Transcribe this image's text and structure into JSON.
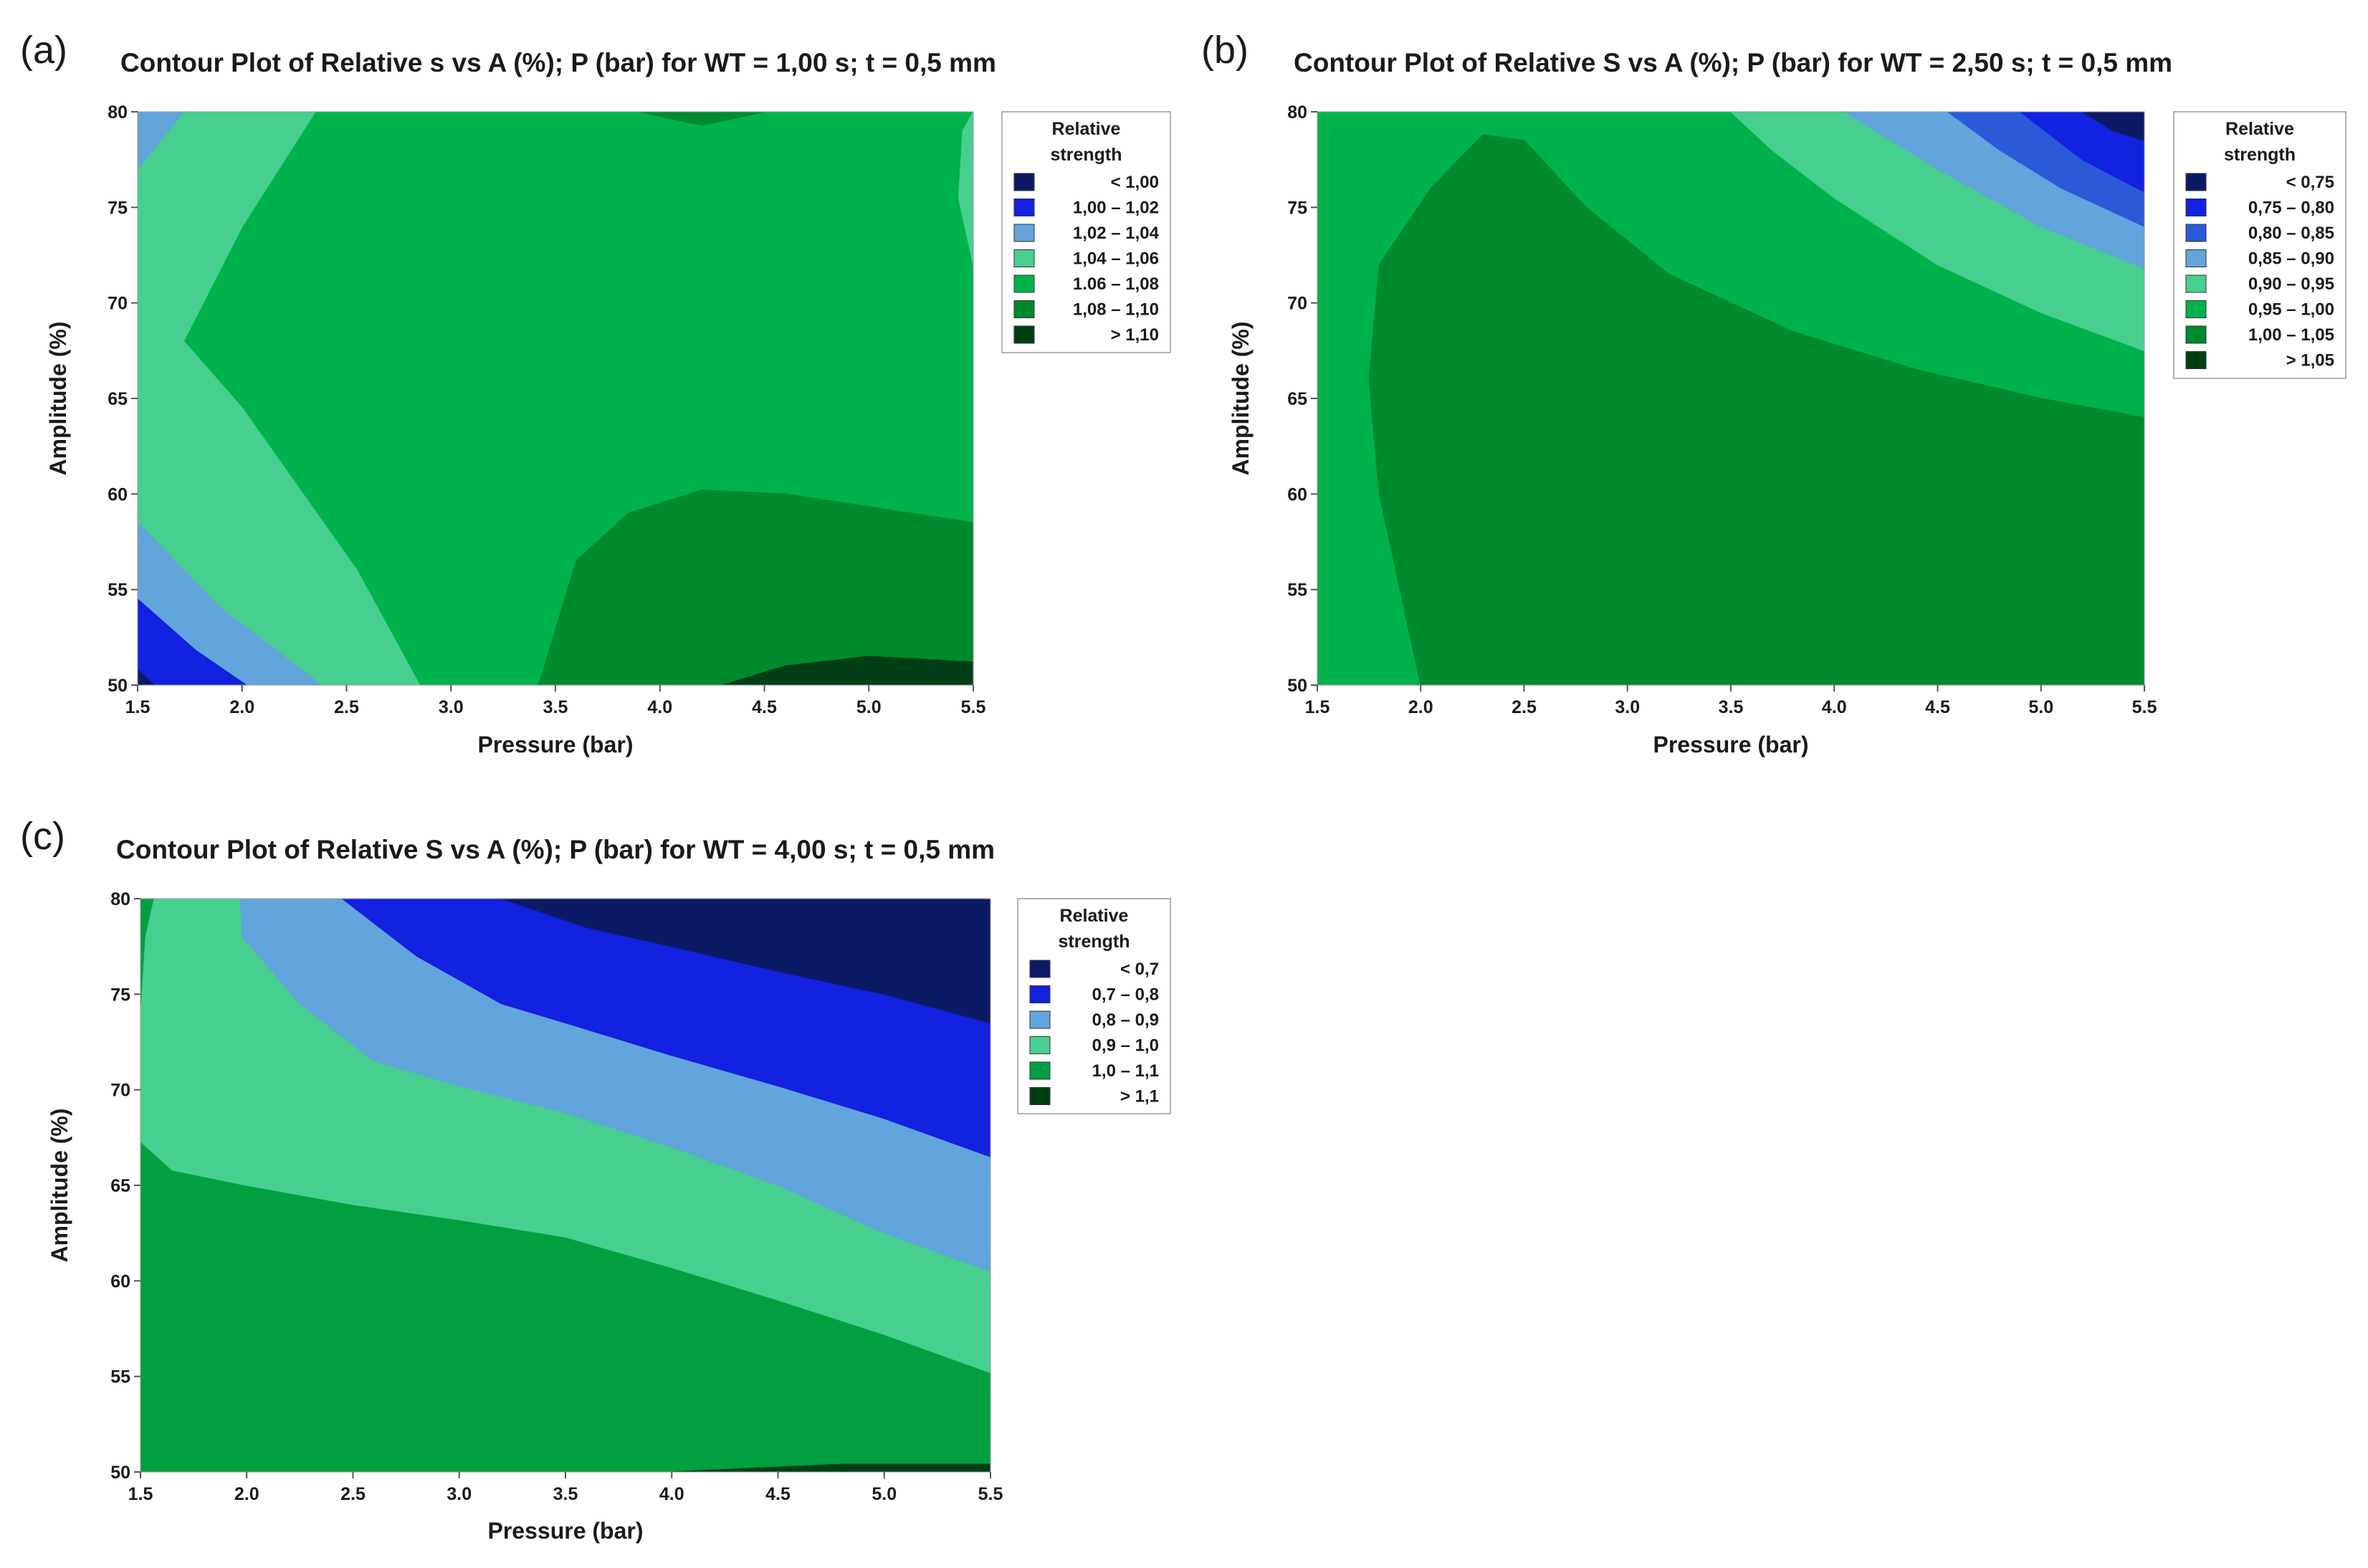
{
  "chart_data": [
    {
      "type": "contour",
      "panel_label": "(a)",
      "title": "Contour Plot of Relative s vs A (%); P (bar) for WT = 1,00 s; t = 0,5 mm",
      "xlabel": "Pressure (bar)",
      "ylabel": "Amplitude (%)",
      "xlim": [
        1.5,
        5.5
      ],
      "ylim": [
        50,
        80
      ],
      "x_ticks": [
        "1.5",
        "2.0",
        "2.5",
        "3.0",
        "3.5",
        "4.0",
        "4.5",
        "5.0",
        "5.5"
      ],
      "y_ticks": [
        "50",
        "55",
        "60",
        "65",
        "70",
        "75",
        "80"
      ],
      "legend_title": "Relative strength",
      "levels": [
        {
          "label": "< 1,00",
          "color": "#0c1a66"
        },
        {
          "label": "1,00 – 1,02",
          "color": "#1321e0"
        },
        {
          "label": "1,02 – 1,04",
          "color": "#62a4dc"
        },
        {
          "label": "1,04 – 1,06",
          "color": "#47cf8f"
        },
        {
          "label": "1.06 – 1,08",
          "color": "#00b24b"
        },
        {
          "label": "1,08 – 1,10",
          "color": "#008a2e"
        },
        {
          "label": "> 1,10",
          "color": "#003f15"
        }
      ],
      "regions": [
        {
          "level": 3,
          "points": [
            [
              1.5,
              50
            ],
            [
              2.85,
              50
            ],
            [
              2.55,
              56
            ],
            [
              2.0,
              64.5
            ],
            [
              1.72,
              68
            ],
            [
              2.0,
              74
            ],
            [
              2.35,
              80
            ],
            [
              1.5,
              80
            ]
          ]
        },
        {
          "level": 2,
          "points": [
            [
              1.5,
              50
            ],
            [
              2.38,
              50
            ],
            [
              1.9,
              54
            ],
            [
              1.5,
              58.5
            ]
          ]
        },
        {
          "level": 1,
          "points": [
            [
              1.5,
              50
            ],
            [
              2.02,
              50
            ],
            [
              1.78,
              51.8
            ],
            [
              1.5,
              54.5
            ]
          ]
        },
        {
          "level": 0,
          "points": [
            [
              1.5,
              50
            ],
            [
              1.58,
              50
            ],
            [
              1.5,
              50.8
            ]
          ]
        },
        {
          "level": 2,
          "points": [
            [
              1.5,
              80
            ],
            [
              1.72,
              80
            ],
            [
              1.5,
              77
            ]
          ]
        },
        {
          "level": 5,
          "points": [
            [
              3.42,
              50
            ],
            [
              5.5,
              50
            ],
            [
              5.5,
              58.5
            ],
            [
              4.6,
              60
            ],
            [
              4.2,
              60.2
            ],
            [
              3.85,
              59
            ],
            [
              3.6,
              56.5
            ]
          ]
        },
        {
          "level": 6,
          "points": [
            [
              4.3,
              50
            ],
            [
              5.5,
              50
            ],
            [
              5.5,
              51.2
            ],
            [
              5.0,
              51.5
            ],
            [
              4.6,
              51
            ]
          ]
        },
        {
          "level": 5,
          "points": [
            [
              3.9,
              80
            ],
            [
              4.5,
              80
            ],
            [
              4.2,
              79.3
            ]
          ]
        },
        {
          "level": 3,
          "points": [
            [
              5.5,
              72
            ],
            [
              5.5,
              80
            ],
            [
              5.45,
              79
            ],
            [
              5.43,
              75.5
            ]
          ]
        }
      ]
    },
    {
      "type": "contour",
      "panel_label": "(b)",
      "title": "Contour Plot of Relative S vs A (%); P (bar) for WT = 2,50 s; t = 0,5 mm",
      "xlabel": "Pressure (bar)",
      "ylabel": "Amplitude (%)",
      "xlim": [
        1.5,
        5.5
      ],
      "ylim": [
        50,
        80
      ],
      "x_ticks": [
        "1.5",
        "2.0",
        "2.5",
        "3.0",
        "3.5",
        "4.0",
        "4.5",
        "5.0",
        "5.5"
      ],
      "y_ticks": [
        "50",
        "55",
        "60",
        "65",
        "70",
        "75",
        "80"
      ],
      "legend_title": "Relative strength",
      "levels": [
        {
          "label": "< 0,75",
          "color": "#0c1a66"
        },
        {
          "label": "0,75 – 0,80",
          "color": "#1321e0"
        },
        {
          "label": "0,80 – 0,85",
          "color": "#2b5ad8"
        },
        {
          "label": "0,85 – 0,90",
          "color": "#62a4dc"
        },
        {
          "label": "0,90 – 0,95",
          "color": "#47cf8f"
        },
        {
          "label": "0,95 – 1,00",
          "color": "#00b24b"
        },
        {
          "label": "1,00 – 1,05",
          "color": "#008a2e"
        },
        {
          "label": "> 1,05",
          "color": "#003f15"
        }
      ],
      "regions": [
        {
          "level": 6,
          "points": [
            [
              2.0,
              50
            ],
            [
              5.5,
              50
            ],
            [
              5.5,
              64
            ],
            [
              5.0,
              65
            ],
            [
              4.4,
              66.5
            ],
            [
              3.8,
              68.5
            ],
            [
              3.2,
              71.5
            ],
            [
              2.8,
              75
            ],
            [
              2.5,
              78.5
            ],
            [
              2.3,
              78.8
            ],
            [
              2.05,
              76
            ],
            [
              1.8,
              72
            ],
            [
              1.75,
              66
            ],
            [
              1.8,
              60
            ]
          ]
        },
        {
          "level": 4,
          "points": [
            [
              3.5,
              80
            ],
            [
              5.5,
              80
            ],
            [
              5.5,
              67.5
            ],
            [
              5.0,
              69.5
            ],
            [
              4.5,
              72
            ],
            [
              4.0,
              75.5
            ],
            [
              3.7,
              78
            ]
          ]
        },
        {
          "level": 3,
          "points": [
            [
              4.05,
              80
            ],
            [
              5.5,
              80
            ],
            [
              5.5,
              71.8
            ],
            [
              5.0,
              74
            ],
            [
              4.5,
              77
            ]
          ]
        },
        {
          "level": 2,
          "points": [
            [
              4.55,
              80
            ],
            [
              5.5,
              80
            ],
            [
              5.5,
              74
            ],
            [
              5.1,
              76
            ],
            [
              4.8,
              78
            ]
          ]
        },
        {
          "level": 1,
          "points": [
            [
              4.9,
              80
            ],
            [
              5.5,
              80
            ],
            [
              5.5,
              75.8
            ],
            [
              5.2,
              77.5
            ]
          ]
        },
        {
          "level": 0,
          "points": [
            [
              5.2,
              80
            ],
            [
              5.5,
              80
            ],
            [
              5.5,
              78.5
            ],
            [
              5.35,
              79
            ]
          ]
        }
      ]
    },
    {
      "type": "contour",
      "panel_label": "(c)",
      "title": "Contour Plot of Relative S vs A (%); P (bar) for WT = 4,00 s; t = 0,5 mm",
      "xlabel": "Pressure (bar)",
      "ylabel": "Amplitude (%)",
      "xlim": [
        1.5,
        5.5
      ],
      "ylim": [
        50,
        80
      ],
      "x_ticks": [
        "1.5",
        "2.0",
        "2.5",
        "3.0",
        "3.5",
        "4.0",
        "4.5",
        "5.0",
        "5.5"
      ],
      "y_ticks": [
        "50",
        "55",
        "60",
        "65",
        "70",
        "75",
        "80"
      ],
      "legend_title": "Relative strength",
      "levels": [
        {
          "label": "< 0,7",
          "color": "#0c1a66"
        },
        {
          "label": "0,7 – 0,8",
          "color": "#1321e0"
        },
        {
          "label": "0,8 – 0,9",
          "color": "#62a4dc"
        },
        {
          "label": "0,9 – 1,0",
          "color": "#47cf8f"
        },
        {
          "label": "1,0 – 1,1",
          "color": "#00a040"
        },
        {
          "label": "> 1,1",
          "color": "#003f15"
        }
      ],
      "regions": [
        {
          "level": 3,
          "points": [
            [
              1.5,
              67.3
            ],
            [
              1.65,
              65.8
            ],
            [
              2.0,
              65
            ],
            [
              2.5,
              64
            ],
            [
              3.0,
              63.2
            ],
            [
              3.5,
              62.3
            ],
            [
              4.0,
              60.7
            ],
            [
              4.5,
              59
            ],
            [
              5.0,
              57.2
            ],
            [
              5.5,
              55.2
            ],
            [
              5.5,
              80
            ],
            [
              1.5,
              80
            ]
          ]
        },
        {
          "level": 2,
          "points": [
            [
              1.97,
              80
            ],
            [
              1.98,
              78
            ],
            [
              2.25,
              74.5
            ],
            [
              2.6,
              71.5
            ],
            [
              3.0,
              70.2
            ],
            [
              3.5,
              68.8
            ],
            [
              4.0,
              67
            ],
            [
              4.5,
              65
            ],
            [
              5.0,
              62.5
            ],
            [
              5.5,
              60.5
            ],
            [
              5.5,
              80
            ]
          ]
        },
        {
          "level": 1,
          "points": [
            [
              2.45,
              80
            ],
            [
              2.8,
              77
            ],
            [
              3.2,
              74.5
            ],
            [
              3.5,
              73.5
            ],
            [
              4.0,
              71.8
            ],
            [
              4.5,
              70.2
            ],
            [
              5.0,
              68.5
            ],
            [
              5.5,
              66.5
            ],
            [
              5.5,
              80
            ]
          ]
        },
        {
          "level": 0,
          "points": [
            [
              3.2,
              80
            ],
            [
              3.6,
              78.5
            ],
            [
              4.0,
              77.5
            ],
            [
              4.5,
              76.2
            ],
            [
              5.0,
              75
            ],
            [
              5.5,
              73.5
            ],
            [
              5.5,
              80
            ]
          ]
        },
        {
          "level": 4,
          "points": [
            [
              1.5,
              74.5
            ],
            [
              1.52,
              78
            ],
            [
              1.56,
              80
            ],
            [
              1.5,
              80
            ]
          ]
        },
        {
          "level": 5,
          "points": [
            [
              4.0,
              50
            ],
            [
              5.5,
              50
            ],
            [
              5.5,
              50.4
            ],
            [
              4.8,
              50.4
            ]
          ]
        }
      ]
    }
  ]
}
